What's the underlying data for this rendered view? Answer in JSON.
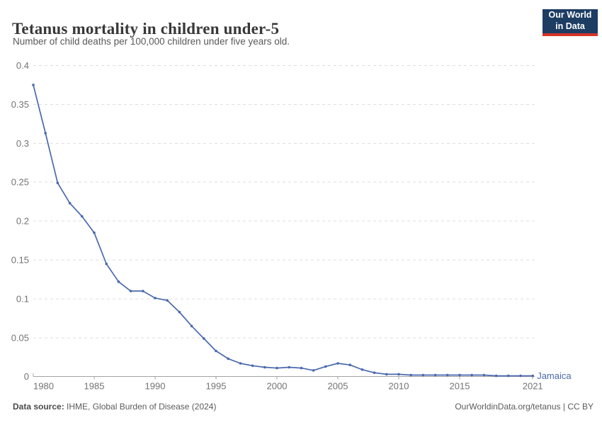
{
  "header": {
    "title": "Tetanus mortality in children under-5",
    "subtitle": "Number of child deaths per 100,000 children under five years old.",
    "logo": {
      "line1": "Our World",
      "line2": "in Data",
      "bg_color": "#1d3d63",
      "accent_color": "#d7342a"
    }
  },
  "chart_data": {
    "type": "line",
    "title": "Tetanus mortality in children under-5",
    "xlabel": "",
    "ylabel": "",
    "xlim": [
      1980,
      2021
    ],
    "ylim": [
      0,
      0.4
    ],
    "grid": "horizontal-dashed",
    "legend_position": "end-of-line-label",
    "x_ticks": [
      1980,
      1985,
      1990,
      1995,
      2000,
      2005,
      2010,
      2015,
      2021
    ],
    "x_tick_labels": [
      "1980",
      "1985",
      "1990",
      "1995",
      "2000",
      "2005",
      "2010",
      "2015",
      "2021"
    ],
    "y_ticks": [
      0,
      0.05,
      0.1,
      0.15,
      0.2,
      0.25,
      0.3,
      0.35,
      0.4
    ],
    "y_tick_labels": [
      "0",
      "0.05",
      "0.1",
      "0.15",
      "0.2",
      "0.25",
      "0.3",
      "0.35",
      "0.4"
    ],
    "series": [
      {
        "name": "Jamaica",
        "color": "#4a69ad",
        "x": [
          1980,
          1981,
          1982,
          1983,
          1984,
          1985,
          1986,
          1987,
          1988,
          1989,
          1990,
          1991,
          1992,
          1993,
          1994,
          1995,
          1996,
          1997,
          1998,
          1999,
          2000,
          2001,
          2002,
          2003,
          2004,
          2005,
          2006,
          2007,
          2008,
          2009,
          2010,
          2011,
          2012,
          2013,
          2014,
          2015,
          2016,
          2017,
          2018,
          2019,
          2020,
          2021
        ],
        "values": [
          0.375,
          0.313,
          0.249,
          0.223,
          0.206,
          0.185,
          0.145,
          0.122,
          0.11,
          0.11,
          0.101,
          0.098,
          0.083,
          0.065,
          0.049,
          0.033,
          0.023,
          0.017,
          0.014,
          0.012,
          0.011,
          0.012,
          0.011,
          0.008,
          0.013,
          0.017,
          0.015,
          0.009,
          0.005,
          0.003,
          0.003,
          0.002,
          0.002,
          0.002,
          0.002,
          0.002,
          0.002,
          0.002,
          0.001,
          0.001,
          0.001,
          0.001
        ]
      }
    ],
    "colors": {
      "gridline": "#dedede",
      "axis": "#a3a3a3",
      "tick_label": "#737373"
    }
  },
  "footer": {
    "source_label": "Data source:",
    "source_text": " IHME, Global Burden of Disease (2024)",
    "right_text": "OurWorldinData.org/tetanus | CC BY"
  }
}
